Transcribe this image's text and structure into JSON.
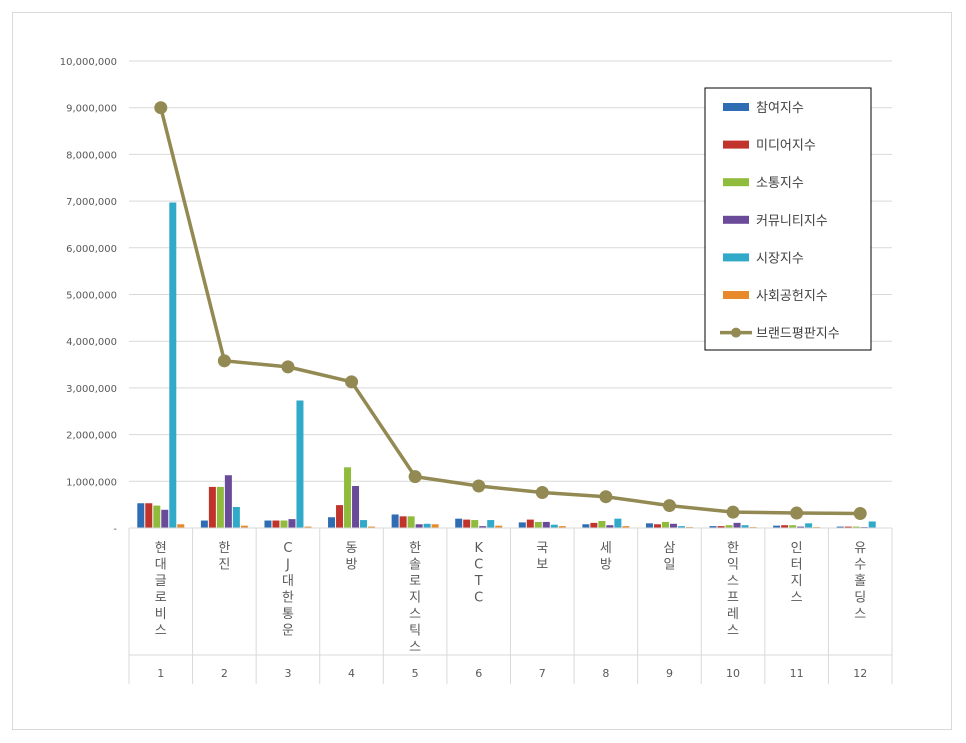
{
  "chart_data": {
    "type": "bar",
    "categories": [
      "현대글로비스",
      "한진",
      "CJ대한통운",
      "동방",
      "한솔로지스틱스",
      "KCTC",
      "국보",
      "세방",
      "삼일",
      "한익스프레스",
      "인터지스",
      "유수홀딩스"
    ],
    "ranks": [
      "1",
      "2",
      "3",
      "4",
      "5",
      "6",
      "7",
      "8",
      "9",
      "10",
      "11",
      "12"
    ],
    "y_ticks": [
      "-",
      "1,000,000",
      "2,000,000",
      "3,000,000",
      "4,000,000",
      "5,000,000",
      "6,000,000",
      "7,000,000",
      "8,000,000",
      "9,000,000",
      "10,000,000"
    ],
    "ylim": [
      0,
      10000000
    ],
    "grid": true,
    "legend_position": "top-right",
    "series": [
      {
        "name": "참여지수",
        "color": "#2e6db4",
        "values": [
          530000,
          160000,
          160000,
          230000,
          290000,
          200000,
          120000,
          80000,
          100000,
          40000,
          50000,
          30000
        ]
      },
      {
        "name": "미디어지수",
        "color": "#c0342b",
        "values": [
          530000,
          880000,
          160000,
          490000,
          250000,
          180000,
          180000,
          110000,
          80000,
          40000,
          60000,
          30000
        ]
      },
      {
        "name": "소통지수",
        "color": "#8fbc3d",
        "values": [
          480000,
          880000,
          160000,
          1300000,
          250000,
          170000,
          130000,
          150000,
          130000,
          60000,
          60000,
          30000
        ]
      },
      {
        "name": "커뮤니티지수",
        "color": "#6a4b9a",
        "values": [
          390000,
          1130000,
          190000,
          900000,
          80000,
          40000,
          130000,
          60000,
          90000,
          110000,
          30000,
          20000
        ]
      },
      {
        "name": "시장지수",
        "color": "#31a9c9",
        "values": [
          6970000,
          450000,
          2730000,
          170000,
          90000,
          170000,
          70000,
          200000,
          40000,
          60000,
          100000,
          140000
        ]
      },
      {
        "name": "사회공헌지수",
        "color": "#e88a2c",
        "values": [
          80000,
          50000,
          30000,
          30000,
          80000,
          50000,
          40000,
          40000,
          20000,
          20000,
          20000,
          10000
        ]
      }
    ],
    "line_series": {
      "name": "브랜드평판지수",
      "color": "#938953",
      "values": [
        9000000,
        3580000,
        3450000,
        3130000,
        1100000,
        900000,
        760000,
        670000,
        480000,
        340000,
        320000,
        310000
      ]
    }
  }
}
